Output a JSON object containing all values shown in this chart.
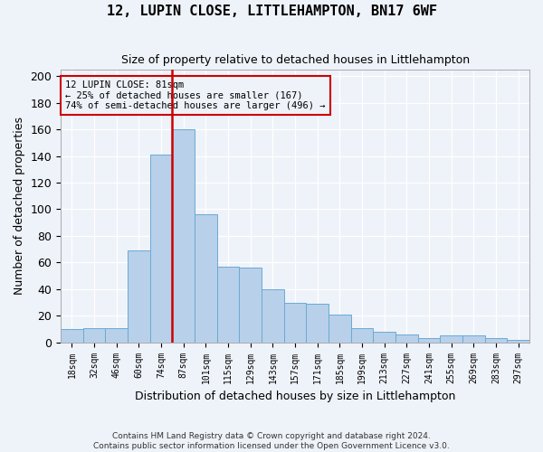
{
  "title": "12, LUPIN CLOSE, LITTLEHAMPTON, BN17 6WF",
  "subtitle": "Size of property relative to detached houses in Littlehampton",
  "xlabel": "Distribution of detached houses by size in Littlehampton",
  "ylabel": "Number of detached properties",
  "bin_labels": [
    "18sqm",
    "32sqm",
    "46sqm",
    "60sqm",
    "74sqm",
    "87sqm",
    "101sqm",
    "115sqm",
    "129sqm",
    "143sqm",
    "157sqm",
    "171sqm",
    "185sqm",
    "199sqm",
    "213sqm",
    "227sqm",
    "241sqm",
    "255sqm",
    "269sqm",
    "283sqm",
    "297sqm"
  ],
  "bar_heights": [
    10,
    11,
    11,
    69,
    141,
    160,
    96,
    57,
    56,
    40,
    30,
    29,
    21,
    11,
    8,
    6,
    3,
    5,
    5,
    3,
    2
  ],
  "bar_color": "#b8d0ea",
  "bar_edge_color": "#6aaad4",
  "vline_x_index": 4.5,
  "vline_color": "#cc0000",
  "annotation_title": "12 LUPIN CLOSE: 81sqm",
  "annotation_line1": "← 25% of detached houses are smaller (167)",
  "annotation_line2": "74% of semi-detached houses are larger (496) →",
  "annotation_box_color": "#cc0000",
  "ylim": [
    0,
    205
  ],
  "yticks": [
    0,
    20,
    40,
    60,
    80,
    100,
    120,
    140,
    160,
    180,
    200
  ],
  "footer1": "Contains HM Land Registry data © Crown copyright and database right 2024.",
  "footer2": "Contains public sector information licensed under the Open Government Licence v3.0.",
  "bg_color": "#eef2f9",
  "grid_color": "#ffffff"
}
